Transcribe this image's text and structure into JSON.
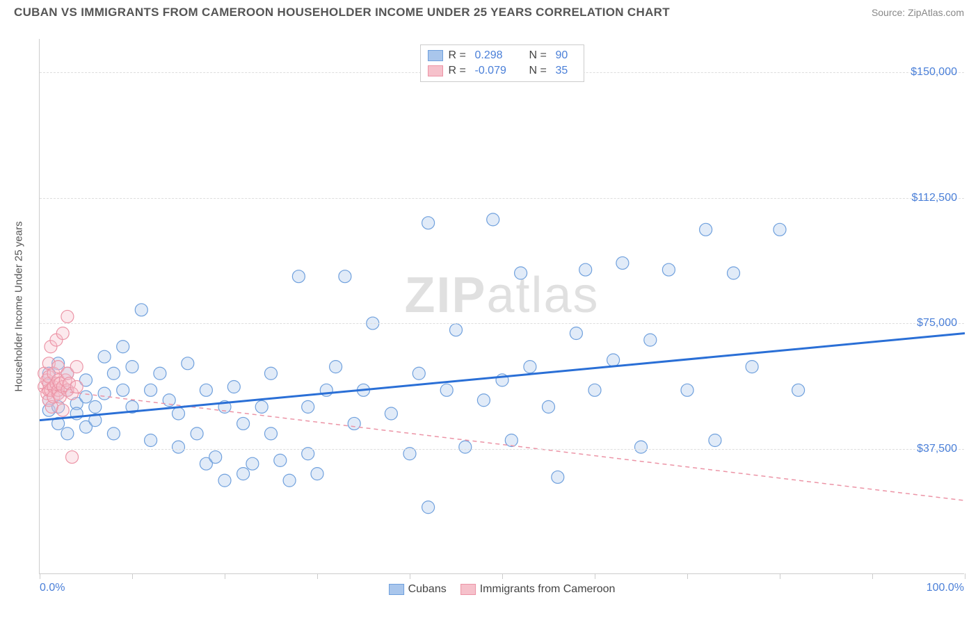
{
  "header": {
    "title": "CUBAN VS IMMIGRANTS FROM CAMEROON HOUSEHOLDER INCOME UNDER 25 YEARS CORRELATION CHART",
    "source": "Source: ZipAtlas.com"
  },
  "watermark": {
    "bold": "ZIP",
    "light": "atlas"
  },
  "chart": {
    "type": "scatter",
    "background_color": "#ffffff",
    "grid_color": "#dddddd",
    "axis_color": "#cccccc",
    "y_axis_label": "Householder Income Under 25 years",
    "y_axis_label_fontsize": 15,
    "tick_label_color": "#4a7fd8",
    "tick_label_fontsize": 16,
    "xlim": [
      0,
      100
    ],
    "ylim": [
      0,
      160000
    ],
    "x_ticks": [
      0,
      10,
      20,
      30,
      40,
      50,
      60,
      70,
      80,
      90,
      100
    ],
    "x_min_label": "0.0%",
    "x_max_label": "100.0%",
    "y_gridlines": [
      {
        "value": 37500,
        "label": "$37,500"
      },
      {
        "value": 75000,
        "label": "$75,000"
      },
      {
        "value": 112500,
        "label": "$112,500"
      },
      {
        "value": 150000,
        "label": "$150,000"
      }
    ],
    "marker_radius": 9,
    "marker_stroke_width": 1.2,
    "marker_fill_opacity": 0.35,
    "series": [
      {
        "name": "Cubans",
        "color_fill": "#a9c6ec",
        "color_stroke": "#6fa0dd",
        "trend_color": "#2a6fd6",
        "trend_style": "solid",
        "trend_width": 3,
        "trend_y0": 46000,
        "trend_y1": 72000,
        "R": "0.298",
        "N": "90",
        "points": [
          [
            1,
            52000
          ],
          [
            1,
            57000
          ],
          [
            1,
            49000
          ],
          [
            1,
            60000
          ],
          [
            2,
            45000
          ],
          [
            2,
            54000
          ],
          [
            2,
            63000
          ],
          [
            2,
            50000
          ],
          [
            3,
            42000
          ],
          [
            3,
            55000
          ],
          [
            3,
            60000
          ],
          [
            4,
            51000
          ],
          [
            4,
            48000
          ],
          [
            5,
            53000
          ],
          [
            5,
            58000
          ],
          [
            5,
            44000
          ],
          [
            6,
            50000
          ],
          [
            6,
            46000
          ],
          [
            7,
            65000
          ],
          [
            7,
            54000
          ],
          [
            8,
            60000
          ],
          [
            8,
            42000
          ],
          [
            9,
            68000
          ],
          [
            9,
            55000
          ],
          [
            10,
            62000
          ],
          [
            10,
            50000
          ],
          [
            11,
            79000
          ],
          [
            12,
            55000
          ],
          [
            12,
            40000
          ],
          [
            13,
            60000
          ],
          [
            14,
            52000
          ],
          [
            15,
            38000
          ],
          [
            15,
            48000
          ],
          [
            16,
            63000
          ],
          [
            17,
            42000
          ],
          [
            18,
            55000
          ],
          [
            18,
            33000
          ],
          [
            19,
            35000
          ],
          [
            20,
            50000
          ],
          [
            20,
            28000
          ],
          [
            21,
            56000
          ],
          [
            22,
            45000
          ],
          [
            22,
            30000
          ],
          [
            23,
            33000
          ],
          [
            24,
            50000
          ],
          [
            25,
            42000
          ],
          [
            25,
            60000
          ],
          [
            26,
            34000
          ],
          [
            27,
            28000
          ],
          [
            28,
            89000
          ],
          [
            29,
            36000
          ],
          [
            29,
            50000
          ],
          [
            30,
            30000
          ],
          [
            31,
            55000
          ],
          [
            32,
            62000
          ],
          [
            33,
            89000
          ],
          [
            34,
            45000
          ],
          [
            35,
            55000
          ],
          [
            36,
            75000
          ],
          [
            38,
            48000
          ],
          [
            40,
            36000
          ],
          [
            41,
            60000
          ],
          [
            42,
            105000
          ],
          [
            42,
            20000
          ],
          [
            44,
            55000
          ],
          [
            45,
            73000
          ],
          [
            46,
            38000
          ],
          [
            48,
            52000
          ],
          [
            49,
            106000
          ],
          [
            50,
            58000
          ],
          [
            51,
            40000
          ],
          [
            52,
            90000
          ],
          [
            53,
            62000
          ],
          [
            55,
            50000
          ],
          [
            56,
            29000
          ],
          [
            58,
            72000
          ],
          [
            59,
            91000
          ],
          [
            60,
            55000
          ],
          [
            62,
            64000
          ],
          [
            63,
            93000
          ],
          [
            65,
            38000
          ],
          [
            66,
            70000
          ],
          [
            68,
            91000
          ],
          [
            70,
            55000
          ],
          [
            72,
            103000
          ],
          [
            73,
            40000
          ],
          [
            75,
            90000
          ],
          [
            77,
            62000
          ],
          [
            80,
            103000
          ],
          [
            82,
            55000
          ]
        ]
      },
      {
        "name": "Immigrants from Cameroon",
        "color_fill": "#f6c1cb",
        "color_stroke": "#ec94a6",
        "trend_color": "#ec94a6",
        "trend_style": "dashed",
        "trend_width": 1.5,
        "trend_y0": 55500,
        "trend_y1": 22000,
        "R": "-0.079",
        "N": "35",
        "points": [
          [
            0.5,
            56000
          ],
          [
            0.5,
            60000
          ],
          [
            0.8,
            54000
          ],
          [
            0.8,
            58000
          ],
          [
            1,
            52000
          ],
          [
            1,
            55000
          ],
          [
            1,
            57000
          ],
          [
            1,
            59000
          ],
          [
            1,
            63000
          ],
          [
            1.2,
            68000
          ],
          [
            1.2,
            55000
          ],
          [
            1.3,
            50000
          ],
          [
            1.5,
            56000
          ],
          [
            1.5,
            60000
          ],
          [
            1.5,
            53000
          ],
          [
            1.8,
            57000
          ],
          [
            1.8,
            70000
          ],
          [
            2,
            54000
          ],
          [
            2,
            58000
          ],
          [
            2,
            62000
          ],
          [
            2,
            55000
          ],
          [
            2.2,
            57000
          ],
          [
            2.2,
            53000
          ],
          [
            2.5,
            56000
          ],
          [
            2.5,
            72000
          ],
          [
            2.5,
            49000
          ],
          [
            2.8,
            58000
          ],
          [
            3,
            55000
          ],
          [
            3,
            60000
          ],
          [
            3,
            77000
          ],
          [
            3.2,
            57000
          ],
          [
            3.5,
            54000
          ],
          [
            3.5,
            35000
          ],
          [
            4,
            56000
          ],
          [
            4,
            62000
          ]
        ]
      }
    ]
  },
  "stats_legend": {
    "R_label": "R =",
    "N_label": "N ="
  },
  "bottom_legend_labels": [
    "Cubans",
    "Immigrants from Cameroon"
  ]
}
